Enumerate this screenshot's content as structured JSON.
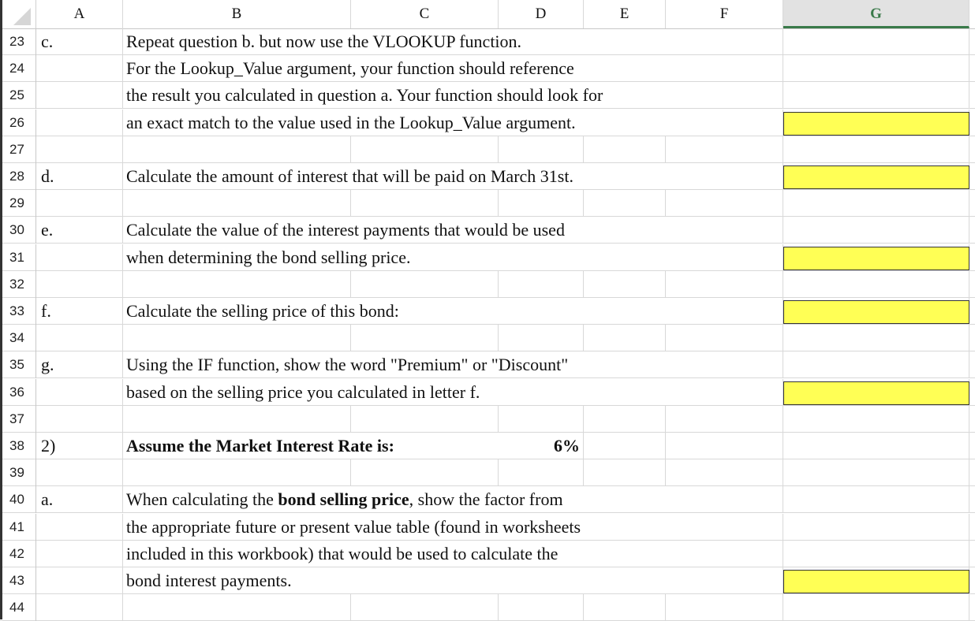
{
  "columns": [
    "A",
    "B",
    "C",
    "D",
    "E",
    "F",
    "G"
  ],
  "selected_column": "G",
  "highlight_color": "#ffff55",
  "rows": [
    {
      "num": "23",
      "label": "c.",
      "text": "Repeat question b. but now use the VLOOKUP function.",
      "answer": false
    },
    {
      "num": "24",
      "label": "",
      "text": "For the Lookup_Value argument, your function should reference",
      "answer": false
    },
    {
      "num": "25",
      "label": "",
      "text": "the result you calculated in question a.   Your function should look for",
      "answer": false
    },
    {
      "num": "26",
      "label": "",
      "text": "an exact match to the value used in the Lookup_Value argument.",
      "answer": true
    },
    {
      "num": "27",
      "label": "",
      "text": "",
      "answer": false
    },
    {
      "num": "28",
      "label": "d.",
      "text": "Calculate the amount of interest that will be paid on March 31st.",
      "answer": true
    },
    {
      "num": "29",
      "label": "",
      "text": "",
      "answer": false
    },
    {
      "num": "30",
      "label": "e.",
      "text": "Calculate the value of the interest payments that would be used",
      "answer": false
    },
    {
      "num": "31",
      "label": "",
      "text": "when determining the bond selling price.",
      "answer": true
    },
    {
      "num": "32",
      "label": "",
      "text": "",
      "answer": false
    },
    {
      "num": "33",
      "label": "f.",
      "text": "Calculate the selling price of this bond:",
      "answer": true
    },
    {
      "num": "34",
      "label": "",
      "text": "",
      "answer": false
    },
    {
      "num": "35",
      "label": "g.",
      "text": "Using the IF function, show the word \"Premium\" or \"Discount\"",
      "answer": false
    },
    {
      "num": "36",
      "label": "",
      "text": "based on the selling price you calculated in letter f.",
      "answer": true
    },
    {
      "num": "37",
      "label": "",
      "text": "",
      "answer": false
    },
    {
      "num": "38",
      "label": "2)",
      "text": "Assume the Market Interest Rate is:",
      "bold": true,
      "value": "6%",
      "answer": false
    },
    {
      "num": "39",
      "label": "",
      "text": "",
      "answer": false
    },
    {
      "num": "40",
      "label": "a.",
      "text_parts": [
        "When calculating the ",
        "bond selling price",
        ", show the factor from"
      ],
      "answer": false
    },
    {
      "num": "41",
      "label": "",
      "text": "the appropriate future or present value table (found in worksheets",
      "answer": false
    },
    {
      "num": "42",
      "label": "",
      "text": "included in this workbook)  that would be used to calculate the",
      "answer": false
    },
    {
      "num": "43",
      "label": "",
      "text": "bond interest payments.",
      "answer": true
    },
    {
      "num": "44",
      "label": "",
      "text": "",
      "answer": false
    }
  ]
}
